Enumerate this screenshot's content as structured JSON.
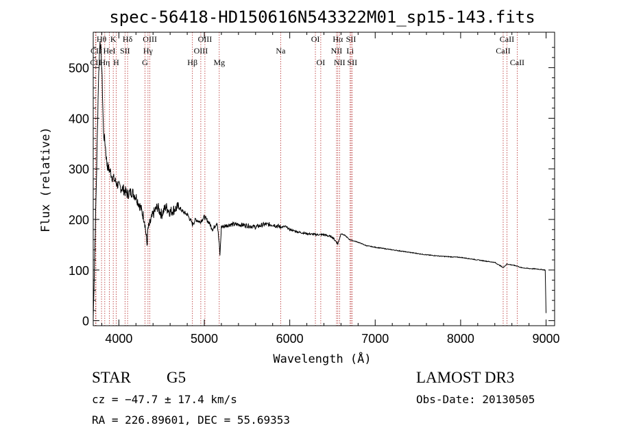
{
  "chart_data": {
    "type": "line",
    "title": "spec-56418-HD150616N543322M01_sp15-143.fits",
    "xlabel": "Wavelength (Å)",
    "ylabel": "Flux (relative)",
    "xlim": [
      3700,
      9100
    ],
    "ylim": [
      -10,
      570
    ],
    "xticks": [
      4000,
      5000,
      6000,
      7000,
      8000,
      9000
    ],
    "yticks": [
      0,
      100,
      200,
      300,
      400,
      500
    ],
    "xtick_labels": [
      "4000",
      "5000",
      "6000",
      "7000",
      "8000",
      "9000"
    ],
    "ytick_labels": [
      "0",
      "100",
      "200",
      "300",
      "400",
      "500"
    ],
    "series": [
      {
        "name": "spectrum",
        "x": [
          3700,
          3720,
          3740,
          3760,
          3780,
          3800,
          3820,
          3840,
          3860,
          3880,
          3900,
          3920,
          3940,
          3960,
          3980,
          4000,
          4050,
          4100,
          4150,
          4200,
          4250,
          4300,
          4330,
          4340,
          4400,
          4450,
          4500,
          4550,
          4600,
          4650,
          4700,
          4750,
          4800,
          4850,
          4861,
          4900,
          4950,
          5000,
          5050,
          5100,
          5150,
          5175,
          5183,
          5200,
          5300,
          5400,
          5500,
          5600,
          5700,
          5800,
          5890,
          5950,
          6000,
          6100,
          6200,
          6300,
          6400,
          6500,
          6563,
          6600,
          6650,
          6700,
          6800,
          6900,
          7000,
          7200,
          7400,
          7600,
          7800,
          8000,
          8200,
          8400,
          8498,
          8542,
          8600,
          8662,
          8700,
          8800,
          8900,
          8990,
          9000
        ],
        "values": [
          5,
          150,
          300,
          470,
          560,
          500,
          370,
          350,
          310,
          300,
          295,
          285,
          280,
          275,
          270,
          265,
          260,
          250,
          255,
          245,
          225,
          200,
          150,
          180,
          210,
          225,
          210,
          225,
          215,
          220,
          225,
          215,
          210,
          195,
          190,
          200,
          195,
          205,
          195,
          180,
          195,
          150,
          130,
          185,
          190,
          190,
          188,
          185,
          190,
          190,
          185,
          186,
          180,
          175,
          172,
          170,
          170,
          165,
          152,
          172,
          168,
          160,
          155,
          148,
          145,
          140,
          135,
          130,
          127,
          125,
          120,
          115,
          105,
          112,
          110,
          108,
          105,
          103,
          102,
          100,
          15
        ]
      }
    ],
    "line_markers": [
      {
        "name": "CII",
        "x": 3727,
        "row": 2
      },
      {
        "name": "CII",
        "x": 3732,
        "row": 1
      },
      {
        "name": "Hθ",
        "x": 3797,
        "row": 0
      },
      {
        "name": "Hη",
        "x": 3835,
        "row": 2
      },
      {
        "name": "K",
        "x": 3934,
        "row": 0
      },
      {
        "name": "H",
        "x": 3968,
        "row": 2
      },
      {
        "name": "HeI",
        "x": 3889,
        "row": 1
      },
      {
        "name": "SII",
        "x": 4072,
        "row": 1
      },
      {
        "name": "Hδ",
        "x": 4102,
        "row": 0
      },
      {
        "name": "OIII",
        "x": 4363,
        "row": 0
      },
      {
        "name": "Hγ",
        "x": 4341,
        "row": 1
      },
      {
        "name": "G",
        "x": 4305,
        "row": 2
      },
      {
        "name": "Hβ",
        "x": 4861,
        "row": 2
      },
      {
        "name": "OIII",
        "x": 4959,
        "row": 1
      },
      {
        "name": "OIII",
        "x": 5007,
        "row": 0
      },
      {
        "name": "Mg",
        "x": 5175,
        "row": 2
      },
      {
        "name": "Na",
        "x": 5894,
        "row": 1
      },
      {
        "name": "OI",
        "x": 6300,
        "row": 0
      },
      {
        "name": "OI",
        "x": 6363,
        "row": 2
      },
      {
        "name": "NII",
        "x": 6548,
        "row": 1
      },
      {
        "name": "Hα",
        "x": 6563,
        "row": 0
      },
      {
        "name": "NII",
        "x": 6583,
        "row": 2
      },
      {
        "name": "Li",
        "x": 6707,
        "row": 1
      },
      {
        "name": "SII",
        "x": 6717,
        "row": 0
      },
      {
        "name": "SII",
        "x": 6731,
        "row": 2
      },
      {
        "name": "CaII",
        "x": 8498,
        "row": 1
      },
      {
        "name": "CaII",
        "x": 8542,
        "row": 0
      },
      {
        "name": "CaII",
        "x": 8662,
        "row": 2
      }
    ],
    "marker_color": "#b22222"
  },
  "info": {
    "object_class": "STAR",
    "subclass": "G5",
    "survey": "LAMOST DR3",
    "redshift": "cz = −47.7 ± 17.4 km/s",
    "obs_date": "Obs-Date: 20130505",
    "coords": "RA = 226.89601, DEC =  55.69353"
  }
}
